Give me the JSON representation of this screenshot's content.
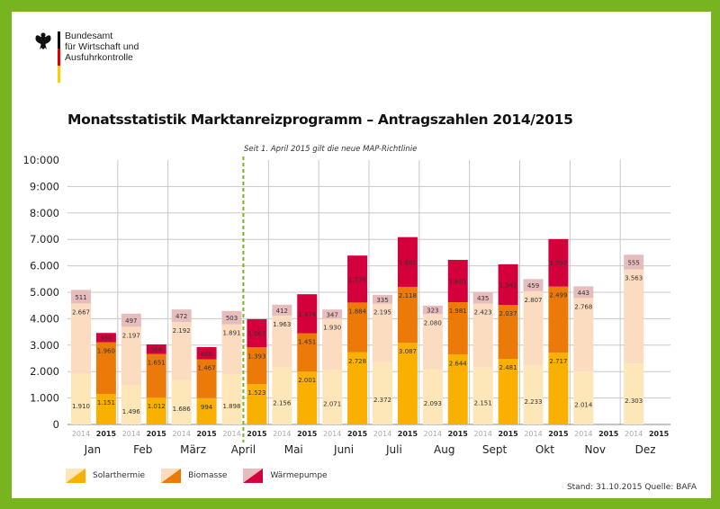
{
  "org": {
    "lines": [
      "Bundesamt",
      "für Wirtschaft und",
      "Ausfuhrkontrolle"
    ],
    "flag_colors": [
      "#000000",
      "#dd0000",
      "#ffce00"
    ]
  },
  "footer": {
    "text": "Stand: 31.10.2015  Quelle: BAFA"
  },
  "frame_color": "#77b41f",
  "chart_data": {
    "type": "bar",
    "stacked": true,
    "title": "Monatsstatistik Marktanreizprogramm – Antragszahlen 2014/2015",
    "annotation": "Seit 1. April 2015 gilt die neue MAP-Richtlinie",
    "annotation_position": "between April 2014 and April 2015",
    "xlabel": "",
    "ylabel": "",
    "ylim": [
      0,
      10000
    ],
    "yticks": [
      0,
      1000,
      2000,
      3000,
      4000,
      5000,
      6000,
      7000,
      8000,
      9000,
      10000
    ],
    "ytick_labels": [
      "0",
      "1.000",
      "2.000",
      "3.000",
      "4.000",
      "5.000",
      "6.000",
      "7.000",
      "8:000",
      "9:000",
      "10:000"
    ],
    "grid": true,
    "categories": [
      "Jan",
      "Feb",
      "März",
      "April",
      "Mai",
      "Juni",
      "Juli",
      "Aug",
      "Sept",
      "Okt",
      "Nov",
      "Dez"
    ],
    "years": [
      "2014",
      "2015"
    ],
    "legend": [
      "Solarthermie",
      "Biomasse",
      "Wärmepumpe"
    ],
    "legend_position": "bottom-left",
    "colors": {
      "2014": {
        "Solarthermie": "#fde6b8",
        "Biomasse": "#fcdcc0",
        "Wärmepumpe": "#e6bcbc"
      },
      "2015": {
        "Solarthermie": "#f9b000",
        "Biomasse": "#ec7a08",
        "Wärmepumpe": "#d4003c"
      }
    },
    "series": [
      {
        "name": "Solarthermie",
        "year": "2014",
        "values": [
          1910,
          1496,
          1686,
          1898,
          2156,
          2071,
          2372,
          2093,
          2151,
          2233,
          2014,
          2303
        ]
      },
      {
        "name": "Biomasse",
        "year": "2014",
        "values": [
          2667,
          2197,
          2192,
          1891,
          1963,
          1930,
          2195,
          2080,
          2423,
          2807,
          2768,
          3563
        ]
      },
      {
        "name": "Wärmepumpe",
        "year": "2014",
        "values": [
          511,
          497,
          472,
          503,
          412,
          347,
          335,
          323,
          435,
          459,
          443,
          555
        ]
      },
      {
        "name": "Solarthermie",
        "year": "2015",
        "values": [
          1151,
          1012,
          994,
          1523,
          2001,
          2728,
          3087,
          2644,
          2481,
          2717,
          null,
          null
        ]
      },
      {
        "name": "Biomasse",
        "year": "2015",
        "values": [
          1960,
          1651,
          1467,
          1393,
          1451,
          1884,
          2118,
          1981,
          2037,
          2499,
          null,
          null
        ]
      },
      {
        "name": "Wärmepumpe",
        "year": "2015",
        "values": [
          350,
          366,
          466,
          1067,
          1474,
          1776,
          1881,
          1601,
          1541,
          1797,
          null,
          null
        ]
      }
    ]
  }
}
